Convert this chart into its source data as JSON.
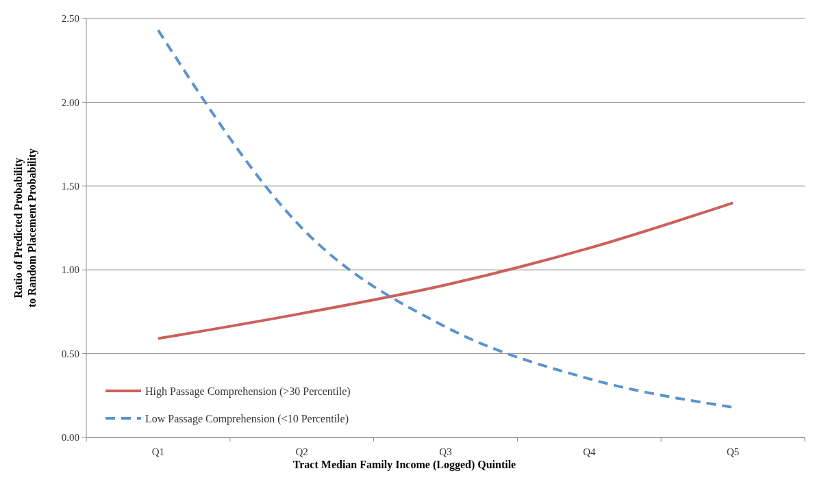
{
  "chart_data": {
    "type": "line",
    "xlabel": "Tract Median Family Income (Logged) Quintile",
    "ylabel": "Ratio of Predicted Probability to Random Placement Probability",
    "categories": [
      "Q1",
      "Q2",
      "Q3",
      "Q4",
      "Q5"
    ],
    "series": [
      {
        "name": "High Passage Comprehension (>30 Percentile)",
        "color": "#cd5f5a",
        "line_style": "solid",
        "values": [
          0.59,
          0.74,
          0.91,
          1.13,
          1.4
        ]
      },
      {
        "name": "Low Passage Comprehension (<10 Percentile)",
        "color": "#5b93cf",
        "line_style": "dashed",
        "values": [
          2.43,
          1.25,
          0.66,
          0.35,
          0.18
        ]
      }
    ],
    "ylim": [
      0,
      2.5
    ],
    "yticks": [
      {
        "value": 0,
        "label": "0.00"
      },
      {
        "value": 0.5,
        "label": "0.50"
      },
      {
        "value": 1,
        "label": "1.00"
      },
      {
        "value": 1.5,
        "label": "1.50"
      },
      {
        "value": 2,
        "label": "2.00"
      },
      {
        "value": 2.5,
        "label": "2.50"
      }
    ],
    "grid": "y",
    "legend": "bottom left",
    "marker": "none"
  }
}
